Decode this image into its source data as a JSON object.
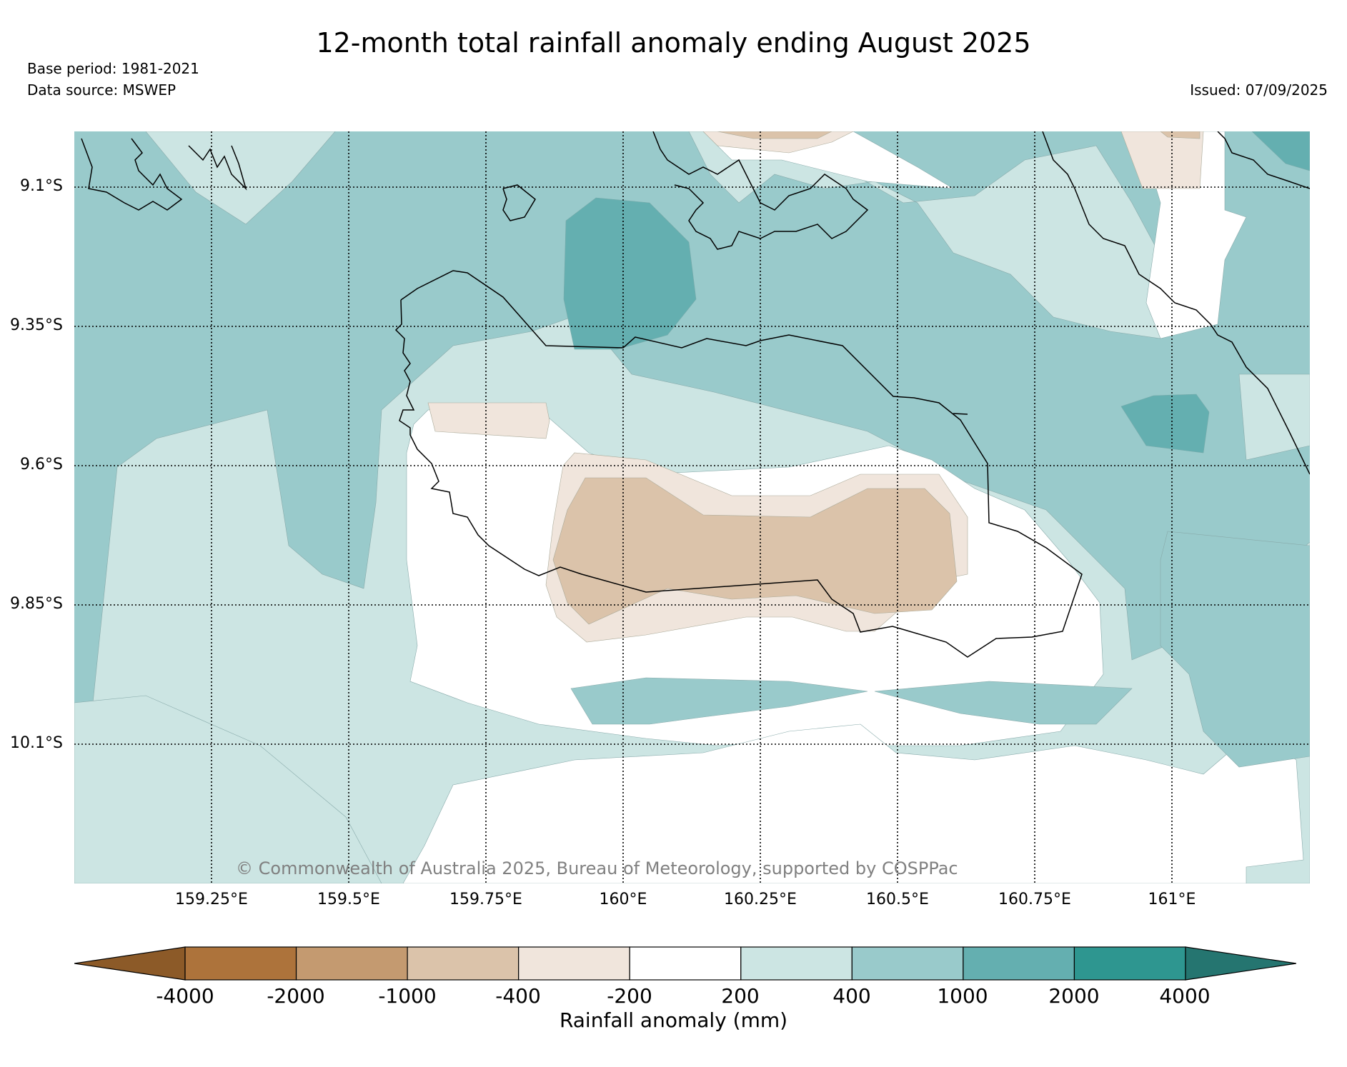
{
  "title": "12-month total rainfall anomaly ending August 2025",
  "base_period": "Base period: 1981-2021",
  "data_source": "Data source: MSWEP",
  "issued": "Issued: 07/09/2025",
  "copyright": "© Commonwealth of Australia 2025, Bureau of Meteorology, supported by COSPPac",
  "axes": {
    "lon_ticks": [
      "159.25°E",
      "159.5°E",
      "159.75°E",
      "160°E",
      "160.25°E",
      "160.5°E",
      "160.75°E",
      "161°E"
    ],
    "lat_ticks": [
      "9.1°S",
      "9.35°S",
      "9.6°S",
      "9.85°S",
      "10.1°S"
    ]
  },
  "colorbar": {
    "label": "Rainfall anomaly (mm)",
    "ticks": [
      "-4000",
      "-2000",
      "-1000",
      "-400",
      "-200",
      "200",
      "400",
      "1000",
      "2000",
      "4000"
    ],
    "colors": {
      "below_min": "#8c5a28",
      "bins": [
        "#ad733b",
        "#c49a70",
        "#dbc3aa",
        "#f0e5dc",
        "#ffffff",
        "#cce5e3",
        "#99cacb",
        "#64afb0",
        "#2e9690"
      ],
      "above_max": "#257570"
    }
  }
}
